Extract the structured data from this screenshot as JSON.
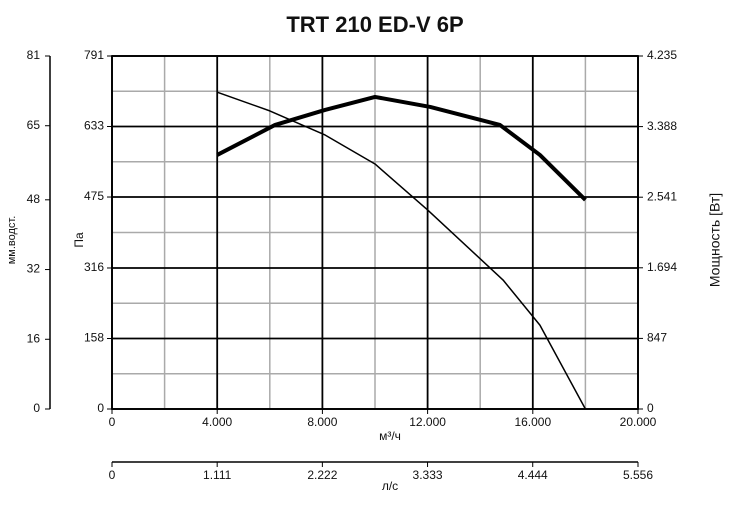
{
  "chart_data": {
    "type": "line",
    "title": "TRT 210 ED-V 6P",
    "xlabel": "м³/ч",
    "ylabel": "Па",
    "y2label": "Мощность [Вт]",
    "y3label": "мм.водст.",
    "x2label": "л/с",
    "xlim": [
      0,
      20000
    ],
    "xticks": [
      0,
      {
        "value": 4000,
        "label": "4.000"
      },
      {
        "value": 8000,
        "label": "8.000"
      },
      {
        "value": 12000,
        "label": "12.000"
      },
      {
        "value": 16000,
        "label": "16.000"
      },
      {
        "value": 20000,
        "label": "20.000"
      }
    ],
    "x2lim": [
      0,
      5556
    ],
    "x2ticks": [
      0,
      {
        "value": 1111,
        "label": "1.111"
      },
      {
        "value": 2222,
        "label": "2.222"
      },
      {
        "value": 3333,
        "label": "3.333"
      },
      {
        "value": 4444,
        "label": "4.444"
      },
      {
        "value": 5556,
        "label": "5.556"
      }
    ],
    "ylim": [
      0,
      791
    ],
    "yticks": [
      0,
      158,
      316,
      475,
      633,
      791
    ],
    "y2lim": [
      0,
      4235
    ],
    "y2ticks": [
      0,
      847,
      {
        "value": 1694,
        "label": "1.694"
      },
      {
        "value": 2541,
        "label": "2.541"
      },
      {
        "value": 3388,
        "label": "3.388"
      },
      {
        "value": 4235,
        "label": "4.235"
      }
    ],
    "y3lim": [
      0,
      81
    ],
    "y3ticks": [
      0,
      16,
      32,
      48,
      65,
      81
    ],
    "grid": true,
    "series": [
      {
        "color": "#000000",
        "axis": "y",
        "x": [
          4000,
          6000,
          8100,
          10000,
          12000,
          14870,
          16270,
          18000
        ],
        "values": [
          710,
          668,
          614,
          549,
          446,
          289,
          188,
          0
        ]
      },
      {
        "color": "#000000",
        "axis": "y2",
        "x": [
          4000,
          6200,
          8100,
          10000,
          12100,
          14750,
          16270,
          18000
        ],
        "values": [
          3048,
          3408,
          3588,
          3744,
          3624,
          3408,
          3048,
          2508
        ]
      }
    ]
  }
}
